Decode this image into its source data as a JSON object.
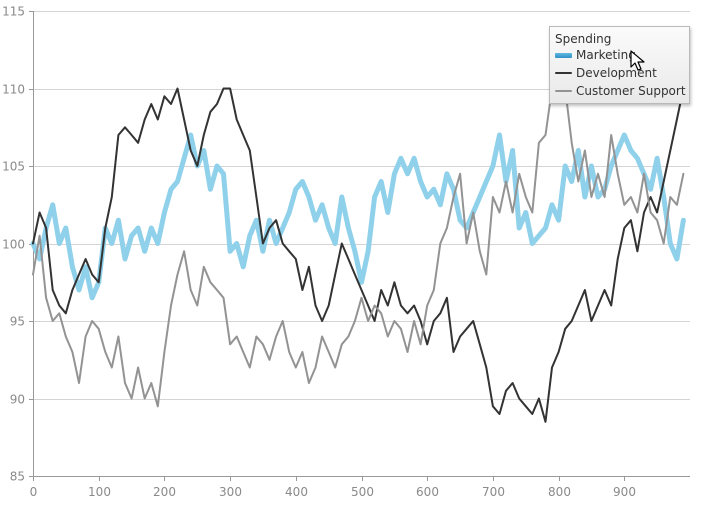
{
  "chart_data": {
    "type": "line",
    "title": "",
    "xlabel": "",
    "ylabel": "",
    "xlim": [
      0,
      1000
    ],
    "ylim": [
      85,
      115
    ],
    "x_ticks": [
      0,
      100,
      200,
      300,
      400,
      500,
      600,
      700,
      800,
      900
    ],
    "y_ticks": [
      85,
      90,
      95,
      100,
      105,
      110,
      115
    ],
    "grid": "horizontal",
    "legend": {
      "title": "Spending",
      "placement": "top-right"
    },
    "series": [
      {
        "name": "Marketing",
        "color": "#8fd0ea",
        "points": [
          [
            0,
            100
          ],
          [
            10,
            99
          ],
          [
            20,
            101
          ],
          [
            30,
            102.5
          ],
          [
            40,
            100
          ],
          [
            50,
            101
          ],
          [
            60,
            98.5
          ],
          [
            70,
            97
          ],
          [
            80,
            98.5
          ],
          [
            90,
            96.5
          ],
          [
            100,
            97.5
          ],
          [
            110,
            101
          ],
          [
            120,
            100
          ],
          [
            130,
            101.5
          ],
          [
            140,
            99
          ],
          [
            150,
            100.5
          ],
          [
            160,
            101
          ],
          [
            170,
            99.5
          ],
          [
            180,
            101
          ],
          [
            190,
            100
          ],
          [
            200,
            102
          ],
          [
            210,
            103.5
          ],
          [
            220,
            104
          ],
          [
            230,
            105.5
          ],
          [
            240,
            107
          ],
          [
            250,
            105
          ],
          [
            260,
            106
          ],
          [
            270,
            103.5
          ],
          [
            280,
            105
          ],
          [
            290,
            104.5
          ],
          [
            300,
            99.5
          ],
          [
            310,
            100
          ],
          [
            320,
            98.5
          ],
          [
            330,
            100.5
          ],
          [
            340,
            101.5
          ],
          [
            350,
            99.5
          ],
          [
            360,
            101.5
          ],
          [
            370,
            100
          ],
          [
            380,
            101
          ],
          [
            390,
            102
          ],
          [
            400,
            103.5
          ],
          [
            410,
            104
          ],
          [
            420,
            103
          ],
          [
            430,
            101.5
          ],
          [
            440,
            102.5
          ],
          [
            450,
            101
          ],
          [
            460,
            100
          ],
          [
            470,
            103
          ],
          [
            480,
            101
          ],
          [
            490,
            99.5
          ],
          [
            500,
            97.5
          ],
          [
            510,
            99.5
          ],
          [
            520,
            103
          ],
          [
            530,
            104
          ],
          [
            540,
            102
          ],
          [
            550,
            104.5
          ],
          [
            560,
            105.5
          ],
          [
            570,
            104.5
          ],
          [
            580,
            105.5
          ],
          [
            590,
            104
          ],
          [
            600,
            103
          ],
          [
            610,
            103.5
          ],
          [
            620,
            102.5
          ],
          [
            630,
            104.5
          ],
          [
            640,
            103.5
          ],
          [
            650,
            101.5
          ],
          [
            660,
            101
          ],
          [
            670,
            102
          ],
          [
            680,
            103
          ],
          [
            690,
            104
          ],
          [
            700,
            105
          ],
          [
            710,
            107
          ],
          [
            720,
            104
          ],
          [
            730,
            106
          ],
          [
            740,
            101
          ],
          [
            750,
            102
          ],
          [
            760,
            100
          ],
          [
            770,
            100.5
          ],
          [
            780,
            101
          ],
          [
            790,
            102.5
          ],
          [
            800,
            101.5
          ],
          [
            810,
            105
          ],
          [
            820,
            104
          ],
          [
            830,
            106
          ],
          [
            840,
            103
          ],
          [
            850,
            105
          ],
          [
            860,
            103
          ],
          [
            870,
            103.5
          ],
          [
            880,
            105
          ],
          [
            890,
            106
          ],
          [
            900,
            107
          ],
          [
            910,
            106
          ],
          [
            920,
            105.5
          ],
          [
            930,
            104.5
          ],
          [
            940,
            103.5
          ],
          [
            950,
            105.5
          ],
          [
            960,
            103
          ],
          [
            970,
            100
          ],
          [
            980,
            99
          ],
          [
            990,
            101.5
          ]
        ]
      },
      {
        "name": "Development",
        "color": "#333333",
        "points": [
          [
            0,
            100
          ],
          [
            10,
            102
          ],
          [
            20,
            101
          ],
          [
            30,
            97
          ],
          [
            40,
            96
          ],
          [
            50,
            95.5
          ],
          [
            60,
            97
          ],
          [
            70,
            98
          ],
          [
            80,
            99
          ],
          [
            90,
            98
          ],
          [
            100,
            97.5
          ],
          [
            110,
            101
          ],
          [
            120,
            103
          ],
          [
            130,
            107
          ],
          [
            140,
            107.5
          ],
          [
            150,
            107
          ],
          [
            160,
            106.5
          ],
          [
            170,
            108
          ],
          [
            180,
            109
          ],
          [
            190,
            108
          ],
          [
            200,
            109.5
          ],
          [
            210,
            109
          ],
          [
            220,
            110
          ],
          [
            230,
            108
          ],
          [
            240,
            106
          ],
          [
            250,
            105
          ],
          [
            260,
            107
          ],
          [
            270,
            108.5
          ],
          [
            280,
            109
          ],
          [
            290,
            110
          ],
          [
            300,
            110
          ],
          [
            310,
            108
          ],
          [
            320,
            107
          ],
          [
            330,
            106
          ],
          [
            340,
            103
          ],
          [
            350,
            100
          ],
          [
            360,
            101
          ],
          [
            370,
            101.5
          ],
          [
            380,
            100
          ],
          [
            390,
            99.5
          ],
          [
            400,
            99
          ],
          [
            410,
            97
          ],
          [
            420,
            98.5
          ],
          [
            430,
            96
          ],
          [
            440,
            95
          ],
          [
            450,
            96
          ],
          [
            460,
            98
          ],
          [
            470,
            100
          ],
          [
            480,
            99
          ],
          [
            490,
            98
          ],
          [
            500,
            97
          ],
          [
            510,
            96
          ],
          [
            520,
            95
          ],
          [
            530,
            97
          ],
          [
            540,
            96
          ],
          [
            550,
            97.5
          ],
          [
            560,
            96
          ],
          [
            570,
            95.5
          ],
          [
            580,
            96
          ],
          [
            590,
            95
          ],
          [
            600,
            93.5
          ],
          [
            610,
            95
          ],
          [
            620,
            95.5
          ],
          [
            630,
            96.5
          ],
          [
            640,
            93
          ],
          [
            650,
            94
          ],
          [
            660,
            94.5
          ],
          [
            670,
            95
          ],
          [
            680,
            93.5
          ],
          [
            690,
            92
          ],
          [
            700,
            89.5
          ],
          [
            710,
            89
          ],
          [
            720,
            90.5
          ],
          [
            730,
            91
          ],
          [
            740,
            90
          ],
          [
            750,
            89.5
          ],
          [
            760,
            89
          ],
          [
            770,
            90
          ],
          [
            780,
            88.5
          ],
          [
            790,
            92
          ],
          [
            800,
            93
          ],
          [
            810,
            94.5
          ],
          [
            820,
            95
          ],
          [
            830,
            96
          ],
          [
            840,
            97
          ],
          [
            850,
            95
          ],
          [
            860,
            96
          ],
          [
            870,
            97
          ],
          [
            880,
            96
          ],
          [
            890,
            99
          ],
          [
            900,
            101
          ],
          [
            910,
            101.5
          ],
          [
            920,
            99.5
          ],
          [
            930,
            102
          ],
          [
            940,
            103
          ],
          [
            950,
            102
          ],
          [
            960,
            104
          ],
          [
            970,
            106
          ],
          [
            980,
            108
          ],
          [
            990,
            110
          ]
        ]
      },
      {
        "name": "Customer Support",
        "color": "#939393",
        "points": [
          [
            0,
            98
          ],
          [
            10,
            100.5
          ],
          [
            20,
            96.5
          ],
          [
            30,
            95
          ],
          [
            40,
            95.5
          ],
          [
            50,
            94
          ],
          [
            60,
            93
          ],
          [
            70,
            91
          ],
          [
            80,
            94
          ],
          [
            90,
            95
          ],
          [
            100,
            94.5
          ],
          [
            110,
            93
          ],
          [
            120,
            92
          ],
          [
            130,
            94
          ],
          [
            140,
            91
          ],
          [
            150,
            90
          ],
          [
            160,
            92
          ],
          [
            170,
            90
          ],
          [
            180,
            91
          ],
          [
            190,
            89.5
          ],
          [
            200,
            93
          ],
          [
            210,
            96
          ],
          [
            220,
            98
          ],
          [
            230,
            99.5
          ],
          [
            240,
            97
          ],
          [
            250,
            96
          ],
          [
            260,
            98.5
          ],
          [
            270,
            97.5
          ],
          [
            280,
            97
          ],
          [
            290,
            96.5
          ],
          [
            300,
            93.5
          ],
          [
            310,
            94
          ],
          [
            320,
            93
          ],
          [
            330,
            92
          ],
          [
            340,
            94
          ],
          [
            350,
            93.5
          ],
          [
            360,
            92.5
          ],
          [
            370,
            94
          ],
          [
            380,
            95
          ],
          [
            390,
            93
          ],
          [
            400,
            92
          ],
          [
            410,
            93
          ],
          [
            420,
            91
          ],
          [
            430,
            92
          ],
          [
            440,
            94
          ],
          [
            450,
            93
          ],
          [
            460,
            92
          ],
          [
            470,
            93.5
          ],
          [
            480,
            94
          ],
          [
            490,
            95
          ],
          [
            500,
            96.5
          ],
          [
            510,
            95
          ],
          [
            520,
            96
          ],
          [
            530,
            95.5
          ],
          [
            540,
            94
          ],
          [
            550,
            95
          ],
          [
            560,
            94.5
          ],
          [
            570,
            93
          ],
          [
            580,
            95
          ],
          [
            590,
            93.5
          ],
          [
            600,
            96
          ],
          [
            610,
            97
          ],
          [
            620,
            100
          ],
          [
            630,
            101
          ],
          [
            640,
            103
          ],
          [
            650,
            104.5
          ],
          [
            660,
            100
          ],
          [
            670,
            102
          ],
          [
            680,
            99.5
          ],
          [
            690,
            98
          ],
          [
            700,
            103
          ],
          [
            710,
            102
          ],
          [
            720,
            104
          ],
          [
            730,
            102
          ],
          [
            740,
            104.5
          ],
          [
            750,
            103
          ],
          [
            760,
            102
          ],
          [
            770,
            106.5
          ],
          [
            780,
            107
          ],
          [
            790,
            110
          ],
          [
            800,
            113
          ],
          [
            810,
            110
          ],
          [
            820,
            106.5
          ],
          [
            830,
            104
          ],
          [
            840,
            106
          ],
          [
            850,
            103
          ],
          [
            860,
            104.5
          ],
          [
            870,
            103
          ],
          [
            880,
            107
          ],
          [
            890,
            104.5
          ],
          [
            900,
            102.5
          ],
          [
            910,
            103
          ],
          [
            920,
            102
          ],
          [
            930,
            104.5
          ],
          [
            940,
            102
          ],
          [
            950,
            101.5
          ],
          [
            960,
            100
          ],
          [
            970,
            103
          ],
          [
            980,
            102.5
          ],
          [
            990,
            104.5
          ]
        ]
      }
    ]
  }
}
